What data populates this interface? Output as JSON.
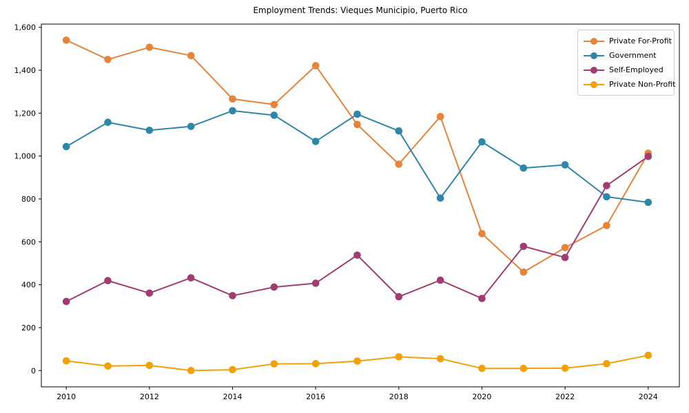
{
  "chart_data": {
    "type": "line",
    "title": "Employment Trends: Vieques Municipio, Puerto Rico",
    "xlabel": "",
    "ylabel": "",
    "x": [
      2010,
      2011,
      2012,
      2013,
      2014,
      2015,
      2016,
      2017,
      2018,
      2019,
      2020,
      2021,
      2022,
      2023,
      2024
    ],
    "series": [
      {
        "name": "Private For-Profit",
        "color": "#e8833a",
        "values": [
          1540,
          1450,
          1507,
          1468,
          1266,
          1240,
          1421,
          1147,
          962,
          1184,
          638,
          459,
          573,
          676,
          1013
        ]
      },
      {
        "name": "Government",
        "color": "#2e86ab",
        "values": [
          1044,
          1157,
          1120,
          1138,
          1211,
          1190,
          1068,
          1195,
          1117,
          804,
          1066,
          944,
          959,
          810,
          784
        ]
      },
      {
        "name": "Self-Employed",
        "color": "#a23b72",
        "values": [
          322,
          419,
          361,
          432,
          349,
          389,
          407,
          538,
          344,
          421,
          336,
          579,
          527,
          862,
          998
        ]
      },
      {
        "name": "Private Non-Profit",
        "color": "#f2a104",
        "values": [
          45,
          21,
          24,
          0,
          4,
          31,
          32,
          44,
          64,
          55,
          10,
          10,
          11,
          32,
          71
        ]
      }
    ],
    "x_ticks": {
      "values": [
        2010,
        2012,
        2014,
        2016,
        2018,
        2020,
        2022,
        2024
      ],
      "labels": [
        "2010",
        "2012",
        "2014",
        "2016",
        "2018",
        "2020",
        "2022",
        "2024"
      ]
    },
    "y_ticks": {
      "values": [
        0,
        200,
        400,
        600,
        800,
        1000,
        1200,
        1400,
        1600
      ],
      "labels": [
        "0",
        "200",
        "400",
        "600",
        "800",
        "1,000",
        "1,200",
        "1,400",
        "1,600"
      ]
    },
    "xlim": [
      2009.4,
      2024.75
    ],
    "ylim": [
      -76,
      1615
    ],
    "grid": false,
    "legend_position": "upper right",
    "marker": "circle"
  }
}
